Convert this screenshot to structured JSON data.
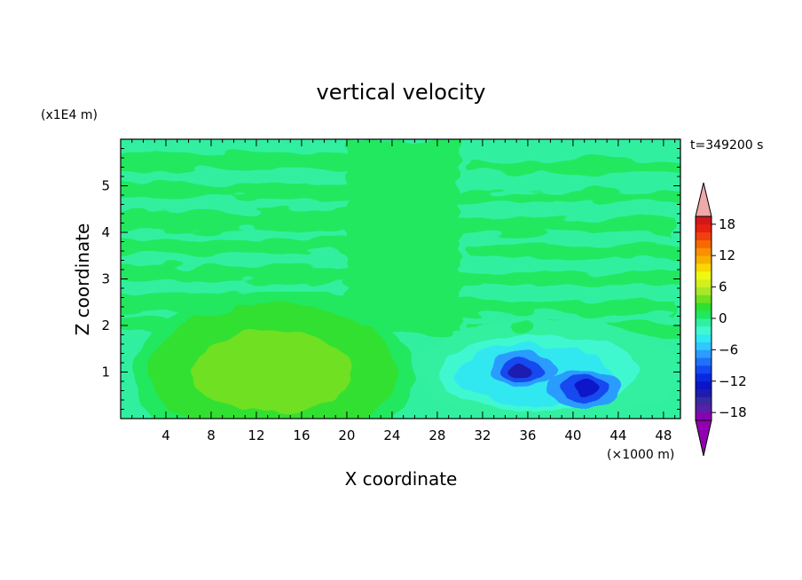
{
  "chart_data": {
    "type": "heatmap",
    "title": "vertical velocity",
    "xlabel": "X coordinate",
    "ylabel": "Z coordinate",
    "x_unit": "(×1000 m)",
    "y_unit": "(x1E4 m)",
    "time_label": "t=349200 s",
    "xlim": [
      0,
      49.5
    ],
    "ylim": [
      0,
      6
    ],
    "x_ticks": [
      4,
      8,
      12,
      16,
      20,
      24,
      28,
      32,
      36,
      40,
      44,
      48
    ],
    "y_ticks": [
      1,
      2,
      3,
      4,
      5
    ],
    "colorbar": {
      "levels": [
        -21,
        -19.5,
        -18,
        -16.5,
        -15,
        -13.5,
        -12,
        -10.5,
        -9,
        -7.5,
        -6,
        -4.5,
        -3,
        -1.5,
        0,
        1.5,
        3,
        4.5,
        6,
        7.5,
        9,
        10.5,
        12,
        13.5,
        15,
        16.5,
        18,
        19.5,
        21
      ],
      "tick_labels": [
        "18",
        "12",
        "6",
        "0",
        "−6",
        "−12",
        "−18"
      ],
      "tick_values": [
        18,
        12,
        6,
        0,
        -6,
        -12,
        -18
      ],
      "colors": [
        "#8b00b0",
        "#5a1ea8",
        "#3a2aa0",
        "#1c1cb0",
        "#0a14c8",
        "#0a28e0",
        "#1448f0",
        "#2070f8",
        "#2c9cff",
        "#30c8ff",
        "#30e8f0",
        "#40f8d0",
        "#30f0a0",
        "#20e860",
        "#30e030",
        "#70e020",
        "#a8e828",
        "#d0f020",
        "#f0f810",
        "#f8d800",
        "#f8b000",
        "#f89000",
        "#f86800",
        "#f04010",
        "#e82010",
        "#d01818"
      ],
      "over_color": "#f0a8a8",
      "under_color": "#9000b0"
    },
    "field_features": [
      {
        "kind": "updraft",
        "x": 13.5,
        "z": 1.0,
        "peak": 4.5
      },
      {
        "kind": "downdraft",
        "x": 35.5,
        "z": 1.05,
        "peak": -13.5
      },
      {
        "kind": "downdraft",
        "x": 41.0,
        "z": 0.65,
        "peak": -12.0
      },
      {
        "kind": "weak-updraft",
        "x": 35.5,
        "z": 2.0,
        "peak": 1.2
      }
    ]
  }
}
